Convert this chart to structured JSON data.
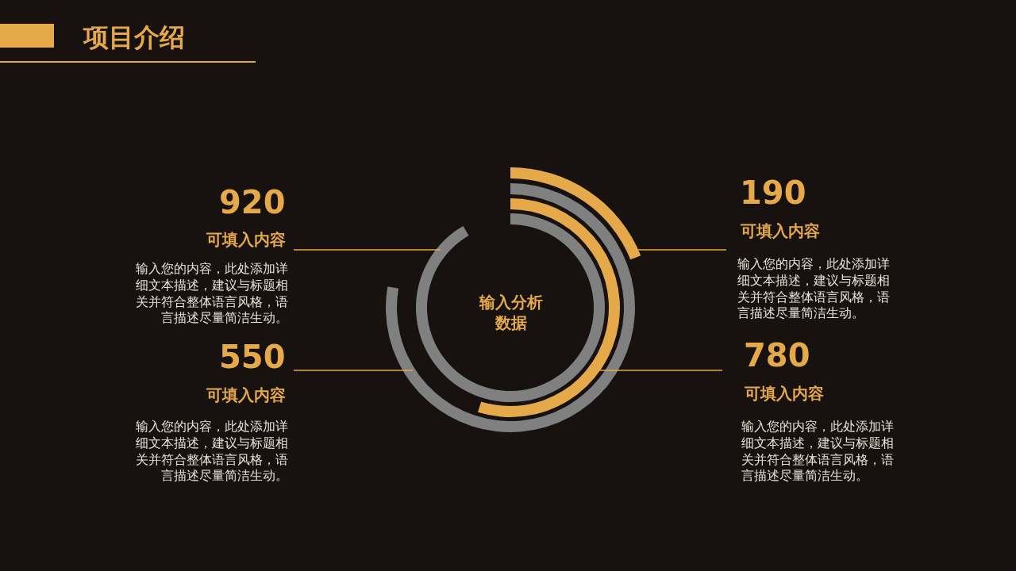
{
  "chart_data": {
    "type": "other",
    "title": "项目介绍",
    "categories": [
      "可填入内容",
      "可填入内容",
      "可填入内容",
      "可填入内容"
    ],
    "values": [
      920,
      550,
      780,
      190
    ],
    "colors": [
      "#808080",
      "#e6a94a",
      "#808080",
      "#e6a94a"
    ],
    "data_labels": true,
    "annotations": [
      "输入分析数据",
      "输入您的内容，此处添加详细文本描述，建议与标题相关并符合整体语言风格，语言描述尽量简洁生动。",
      "输入您的内容，此处添加详细文本描述，建议与标题相关并符合整体语言风格，语言描述尽量简洁生动。",
      "输入您的内容，此处添加详细文本描述，建议与标题相关并符合整体语言风格，语言描述尽量简洁生动。",
      "输入您的内容，此处添加详细文本描述，建议与标题相关并符合整体语言风格，语言描述尽量简洁生动。"
    ]
  }
}
